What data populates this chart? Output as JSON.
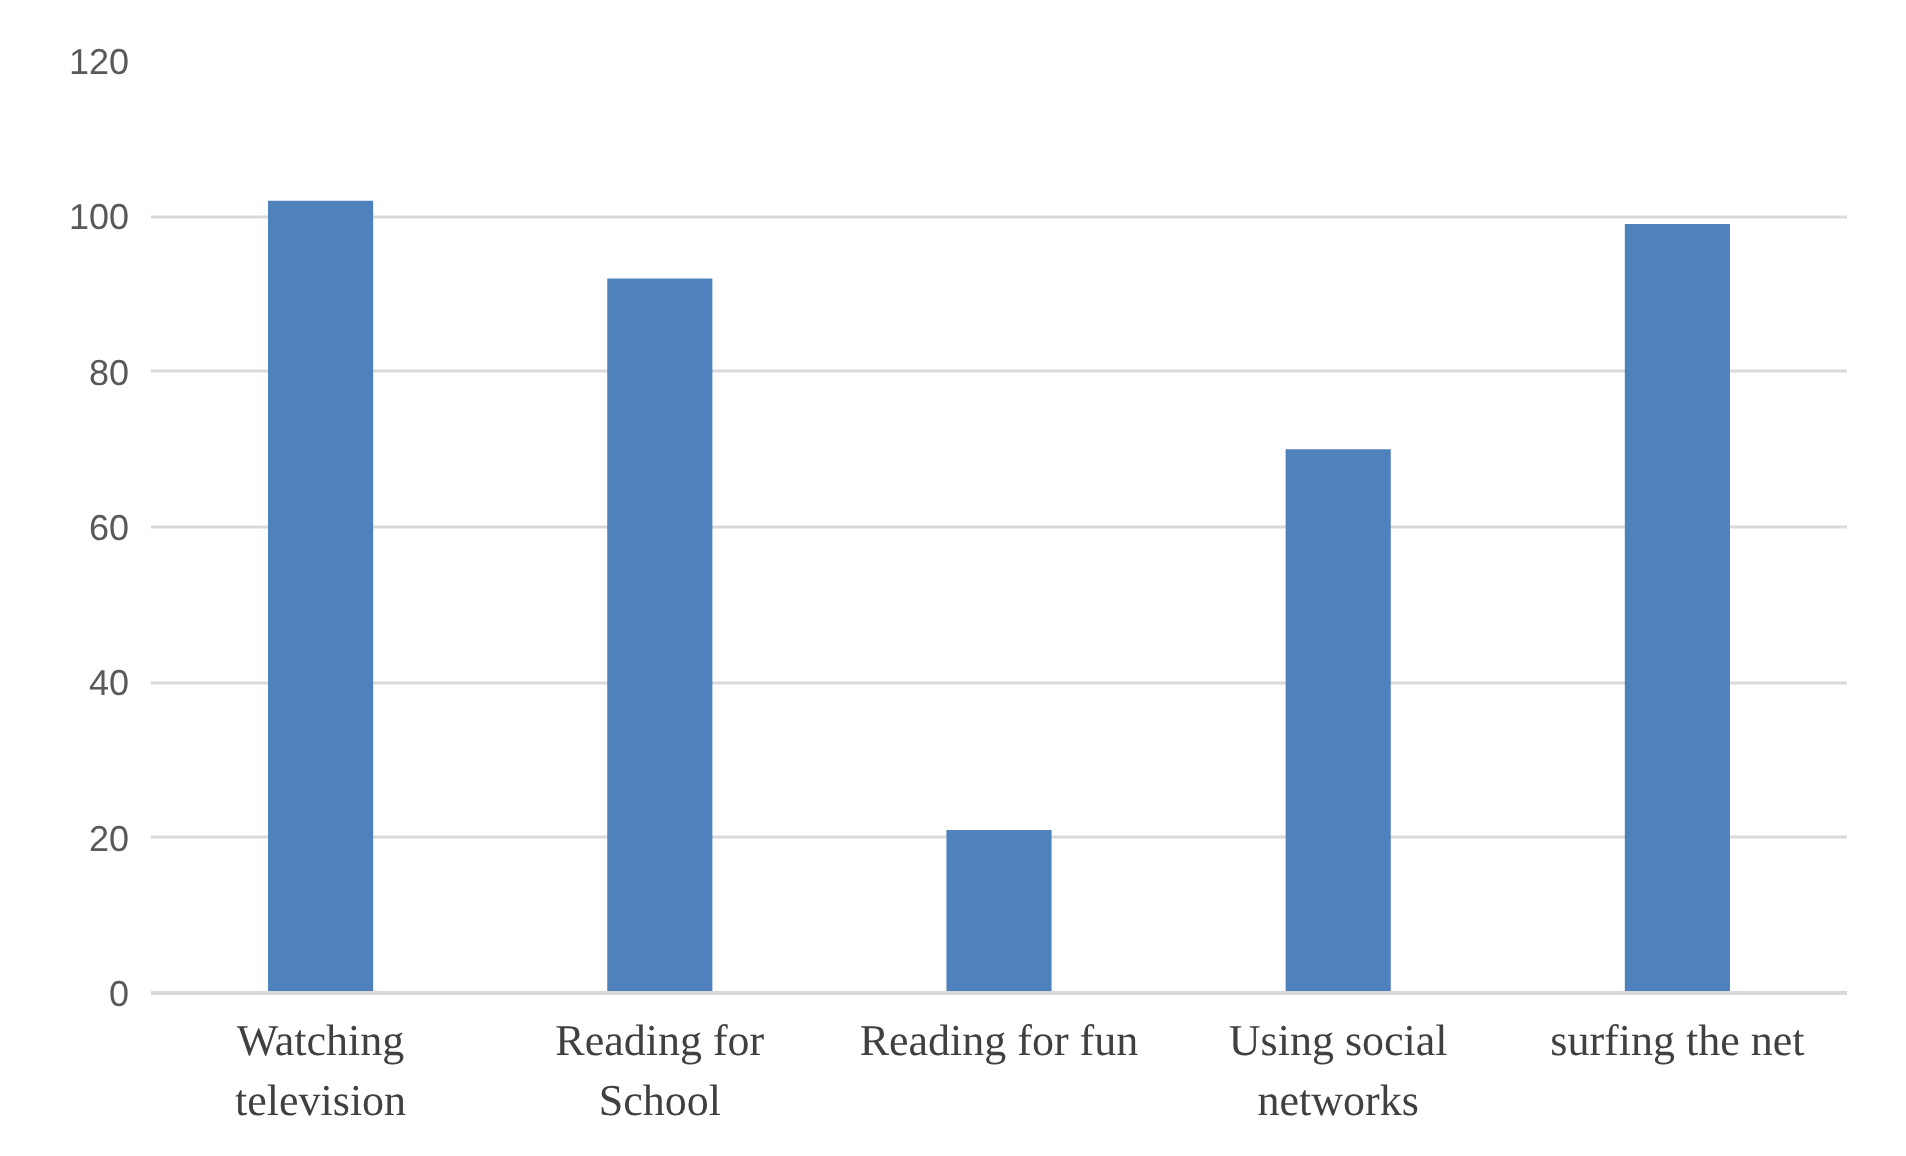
{
  "chart_data": {
    "type": "bar",
    "categories": [
      "Watching television",
      "Reading for School",
      "Reading for fun",
      "Using social networks",
      "surfing the net"
    ],
    "values": [
      102,
      92,
      21,
      70,
      99
    ],
    "color": "#4f81bd",
    "ylim": [
      0,
      120
    ],
    "yticks": [
      0,
      20,
      40,
      60,
      80,
      100,
      120
    ],
    "grid": "y"
  }
}
